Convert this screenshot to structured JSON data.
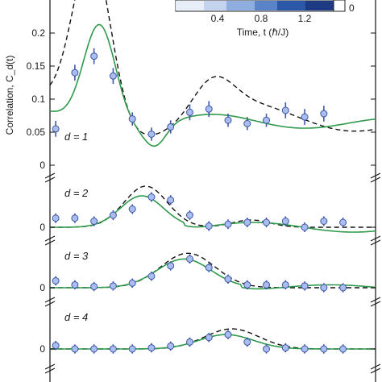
{
  "chart_data": {
    "type": "line",
    "ylabel": "Correlation, C_d(t)",
    "colorbar": {
      "xlabel": "Time, t (ℏ/J)",
      "ticks": [
        "0.4",
        "0.8",
        "1.2"
      ],
      "range_label": "0",
      "colors": [
        "#e8eef8",
        "#c4d3ee",
        "#8fadde",
        "#5b83c8",
        "#2c57a8",
        "#1c3b82"
      ]
    },
    "series_colors": {
      "theory": "#2e9a4a",
      "reference": "#111111",
      "markers": "#a9bdee",
      "marker_stroke": "#3d56a6"
    },
    "x_values": [
      0.0,
      0.1,
      0.2,
      0.3,
      0.4,
      0.5,
      0.6,
      0.7,
      0.8,
      0.9,
      1.0,
      1.1,
      1.2,
      1.3,
      1.4,
      1.5,
      1.6,
      1.7
    ],
    "panels": [
      {
        "label": "d = 1",
        "yticks": [
          "0",
          "0.05",
          "0.1",
          "0.15",
          "0.2"
        ],
        "ylim": [
          -0.01,
          0.25
        ],
        "points": [
          0.055,
          0.14,
          0.165,
          0.135,
          0.07,
          0.047,
          0.058,
          0.08,
          0.085,
          0.068,
          0.063,
          0.068,
          0.083,
          0.073,
          0.078
        ],
        "errors": [
          0.012,
          0.012,
          0.012,
          0.012,
          0.01,
          0.01,
          0.01,
          0.012,
          0.012,
          0.01,
          0.01,
          0.01,
          0.012,
          0.012,
          0.012
        ]
      },
      {
        "label": "d = 2",
        "yticks": [
          "0"
        ],
        "ylim": [
          -0.01,
          0.08
        ],
        "points": [
          0.015,
          0.015,
          0.01,
          0.02,
          0.03,
          0.05,
          0.045,
          0.02,
          0.002,
          0.005,
          0.008,
          0.008,
          0.01,
          0.0,
          0.01,
          0.008
        ],
        "errors": [
          0.008,
          0.008,
          0.008,
          0.008,
          0.008,
          0.008,
          0.008,
          0.008,
          0.008,
          0.008,
          0.008,
          0.008,
          0.008,
          0.008,
          0.008,
          0.008
        ]
      },
      {
        "label": "d = 3",
        "yticks": [
          "0"
        ],
        "ylim": [
          -0.01,
          0.08
        ],
        "points": [
          0.012,
          0.005,
          0.002,
          0.003,
          0.008,
          0.02,
          0.038,
          0.05,
          0.035,
          0.015,
          0.005,
          0.005,
          0.005,
          0.003,
          0.0,
          0.0
        ],
        "errors": [
          0.008,
          0.008,
          0.008,
          0.008,
          0.008,
          0.008,
          0.008,
          0.008,
          0.008,
          0.008,
          0.008,
          0.008,
          0.008,
          0.008,
          0.008,
          0.008
        ]
      },
      {
        "label": "d = 4",
        "yticks": [
          "0"
        ],
        "ylim": [
          -0.01,
          0.08
        ],
        "points": [
          0.006,
          0.0,
          0.0,
          0.0,
          0.0,
          0.002,
          0.005,
          0.012,
          0.02,
          0.025,
          0.012,
          0.0,
          0.002,
          0.0,
          0.0,
          0.0
        ],
        "errors": [
          0.008,
          0.008,
          0.008,
          0.008,
          0.008,
          0.008,
          0.008,
          0.008,
          0.008,
          0.008,
          0.008,
          0.008,
          0.008,
          0.008,
          0.008,
          0.008
        ]
      }
    ]
  }
}
